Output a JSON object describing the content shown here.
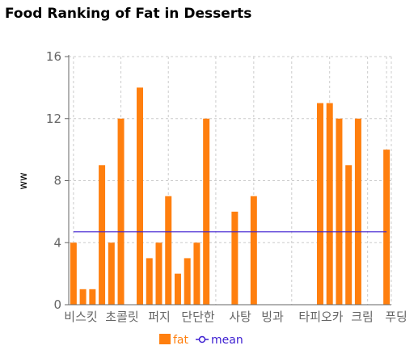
{
  "chart_data": {
    "type": "bar",
    "title": "Food Ranking of Fat in Desserts",
    "ylabel": "ww",
    "xlabel": "",
    "ylim": [
      0,
      16
    ],
    "yticks": [
      0,
      4,
      8,
      12,
      16
    ],
    "grid": true,
    "legend_position": "bottom",
    "xtick_labels": [
      "비스킷",
      "초콜릿",
      "퍼지",
      "단단한",
      "사탕",
      "빙과",
      "타피오카",
      "크림",
      "푸딩"
    ],
    "values": [
      4,
      1,
      1,
      9,
      4,
      12,
      0,
      14,
      3,
      4,
      7,
      2,
      3,
      4,
      12,
      0,
      0,
      6,
      0,
      7,
      0,
      0,
      0,
      0,
      0,
      0,
      13,
      13,
      12,
      9,
      12,
      0,
      0,
      10
    ],
    "series": [
      {
        "name": "fat",
        "type": "bar",
        "color": "#ff7f0e"
      },
      {
        "name": "mean",
        "type": "line",
        "color": "#3d1fd1",
        "value": 4.7
      }
    ]
  }
}
